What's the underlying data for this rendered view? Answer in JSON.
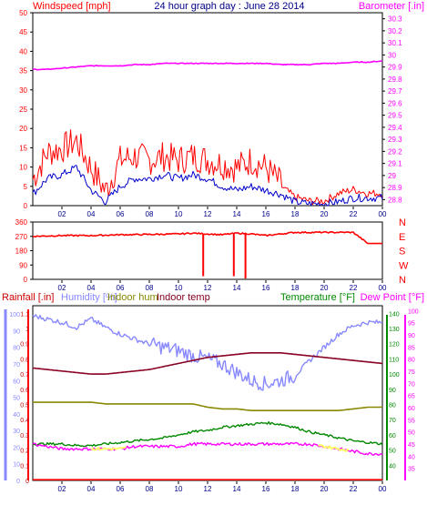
{
  "header": {
    "left_label": "Windspeed [mph]",
    "title": "24 hour graph day : June 28 2014",
    "right_label": "Barometer [.in]"
  },
  "colors": {
    "wind": "#ff0000",
    "wind_avg": "#0000cc",
    "barometer": "#ff00ff",
    "rain": "#ff0000",
    "humidity": "#8888ff",
    "indoor_hum": "#888800",
    "indoor_temp": "#880022",
    "temperature": "#008800",
    "dew_point": "#ff00ff",
    "highlight": "#ffff66",
    "title": "#000088",
    "axis": "#000000"
  },
  "chart_data": [
    {
      "type": "line",
      "name": "wind-baro",
      "x_ticks": [
        "02",
        "04",
        "06",
        "08",
        "10",
        "12",
        "14",
        "16",
        "18",
        "20",
        "22",
        "00"
      ],
      "ylabel_left": "Windspeed [mph]",
      "ylim_left": [
        0,
        50
      ],
      "yticks_left": [
        0,
        5,
        10,
        15,
        20,
        25,
        30,
        35,
        40,
        45,
        50
      ],
      "ylabel_right": "Barometer [.in]",
      "ylim_right": [
        28.75,
        30.35
      ],
      "yticks_right": [
        "28.8",
        "28.9",
        "29",
        "29.1",
        "29.2",
        "29.3",
        "29.4",
        "29.5",
        "29.6",
        "29.7",
        "29.8",
        "29.9",
        "30",
        "30.1",
        "30.2",
        "30.3"
      ],
      "x_hours": [
        0,
        1,
        2,
        3,
        4,
        5,
        6,
        7,
        8,
        9,
        10,
        11,
        12,
        13,
        14,
        15,
        16,
        17,
        18,
        19,
        20,
        21,
        22,
        23,
        24
      ],
      "series": [
        {
          "key": "gust",
          "values": [
            6,
            13,
            14,
            16,
            9,
            3,
            11,
            12,
            11,
            12,
            11,
            12,
            11,
            10,
            9,
            11,
            9,
            5,
            2,
            1,
            1,
            3,
            4,
            3,
            3
          ]
        },
        {
          "key": "avg",
          "values": [
            3,
            7,
            8,
            10,
            4,
            1,
            5,
            7,
            7,
            8,
            7,
            8,
            7,
            5,
            4,
            5,
            4,
            3,
            1,
            0.5,
            0.5,
            1,
            2,
            2,
            2
          ]
        },
        {
          "key": "baro",
          "values": [
            29.88,
            29.88,
            29.89,
            29.9,
            29.91,
            29.91,
            29.91,
            29.92,
            29.92,
            29.93,
            29.93,
            29.93,
            29.93,
            29.93,
            29.93,
            29.93,
            29.93,
            29.92,
            29.92,
            29.92,
            29.93,
            29.93,
            29.94,
            29.94,
            29.95
          ]
        }
      ]
    },
    {
      "type": "line",
      "name": "wind-direction",
      "x_ticks": [
        "02",
        "04",
        "06",
        "08",
        "10",
        "12",
        "14",
        "16",
        "18",
        "20",
        "22",
        "00"
      ],
      "ylim": [
        0,
        360
      ],
      "yticks": [
        0,
        90,
        180,
        270,
        360
      ],
      "yticks_right": [
        "N",
        "W",
        "S",
        "E",
        "N"
      ],
      "x_hours": [
        0,
        2,
        4,
        6,
        8,
        10,
        11,
        12,
        13,
        14,
        15,
        16,
        17,
        18,
        20,
        22,
        23,
        24
      ],
      "series": [
        {
          "key": "dir",
          "values": [
            270,
            275,
            275,
            280,
            282,
            285,
            290,
            285,
            280,
            290,
            285,
            275,
            285,
            295,
            295,
            295,
            225,
            225
          ]
        }
      ],
      "dips": [
        {
          "x_hour": 11.7,
          "value": 20
        },
        {
          "x_hour": 13.8,
          "value": 20
        },
        {
          "x_hour": 14.6,
          "value": 5
        }
      ]
    },
    {
      "type": "line",
      "name": "temp-hum-rain",
      "x_ticks": [
        "02",
        "04",
        "06",
        "08",
        "10",
        "12",
        "14",
        "16",
        "18",
        "20",
        "22",
        "00"
      ],
      "legend": [
        "Rainfall [.in]",
        "Humidity [%]",
        "Indoor hum",
        "Indoor temp",
        "Temperature [°F]",
        "Dew Point [°F]"
      ],
      "ylim_rain": [
        0,
        1.15
      ],
      "yticks_rain": [
        "0",
        "0.1",
        "0.2",
        "0.3",
        "0.4",
        "0.5",
        "0.6",
        "0.7",
        "0.8",
        "0.9",
        "1",
        "1.1"
      ],
      "ylim_hum": [
        0,
        105
      ],
      "yticks_hum": [
        0,
        10,
        20,
        30,
        40,
        50,
        60,
        70,
        80,
        90,
        100
      ],
      "ylim_temp": [
        30,
        145
      ],
      "yticks_temp": [
        40,
        50,
        60,
        70,
        80,
        90,
        100,
        110,
        120,
        130,
        140
      ],
      "ylim_dew": [
        30,
        102
      ],
      "yticks_dew": [
        35,
        40,
        45,
        50,
        55,
        60,
        65,
        70,
        75,
        80,
        85,
        90,
        95,
        100
      ],
      "x_hours": [
        0,
        1,
        2,
        3,
        4,
        5,
        6,
        7,
        8,
        9,
        10,
        11,
        12,
        13,
        14,
        15,
        16,
        17,
        18,
        19,
        20,
        21,
        22,
        23,
        24
      ],
      "series": [
        {
          "key": "humidity",
          "values": [
            99,
            97,
            95,
            92,
            97,
            92,
            88,
            85,
            82,
            80,
            78,
            75,
            73,
            70,
            65,
            60,
            58,
            60,
            63,
            72,
            80,
            88,
            93,
            95,
            95
          ]
        },
        {
          "key": "indoor_temp",
          "values": [
            104,
            103,
            102,
            101,
            100,
            100,
            101,
            102,
            103,
            105,
            107,
            109,
            111,
            112,
            113,
            114,
            114,
            114,
            113,
            112,
            111,
            110,
            109,
            108,
            107
          ]
        },
        {
          "key": "indoor_hum",
          "values": [
            47,
            47,
            47,
            47,
            47,
            46,
            46,
            46,
            46,
            46,
            46,
            46,
            44,
            43,
            43,
            42,
            42,
            42,
            42,
            42,
            42,
            42,
            43,
            44,
            44
          ]
        },
        {
          "key": "temperature",
          "values": [
            54,
            54,
            54,
            53,
            53,
            54,
            55,
            56,
            57,
            58,
            60,
            62,
            63,
            65,
            66,
            67,
            68,
            67,
            65,
            62,
            60,
            58,
            56,
            55,
            54
          ]
        },
        {
          "key": "dew_point",
          "values": [
            45,
            44,
            43,
            43,
            43,
            43,
            43,
            44,
            44,
            44,
            44,
            45,
            45,
            45,
            45,
            45,
            45,
            45,
            45,
            45,
            44,
            43,
            42,
            41,
            41
          ]
        },
        {
          "key": "rain",
          "values": [
            0.005,
            0.005,
            0.005,
            0.005,
            0.005,
            0.005,
            0.005,
            0.005,
            0.005,
            0.005,
            0.005,
            0.005,
            0.005,
            0.005,
            0.005,
            0.005,
            0.005,
            0.005,
            0.005,
            0.005,
            0.005,
            0.005,
            0.005,
            0.005,
            0.005
          ]
        }
      ]
    }
  ]
}
